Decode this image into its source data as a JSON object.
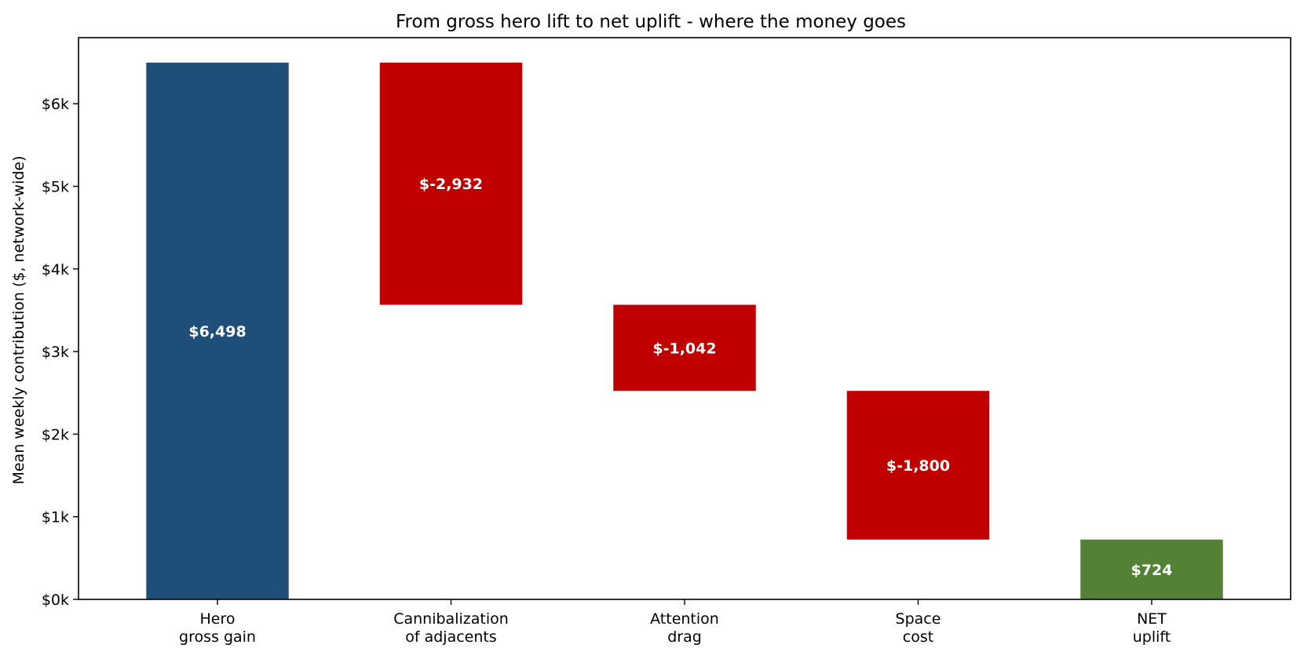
{
  "chart_data": {
    "type": "bar",
    "subtype": "waterfall",
    "title": "From gross hero lift to net uplift  -  where the money goes",
    "xlabel": "",
    "ylabel": "Mean weekly contribution  ($, network-wide)",
    "ylim": [
      0,
      6800
    ],
    "yticks": [
      {
        "value": 0,
        "label": "$0k"
      },
      {
        "value": 1000,
        "label": "$1k"
      },
      {
        "value": 2000,
        "label": "$2k"
      },
      {
        "value": 3000,
        "label": "$3k"
      },
      {
        "value": 4000,
        "label": "$4k"
      },
      {
        "value": 5000,
        "label": "$5k"
      },
      {
        "value": 6000,
        "label": "$6k"
      }
    ],
    "grid": false,
    "legend": "none",
    "steps": [
      {
        "category": [
          "Hero",
          "gross gain"
        ],
        "kind": "total",
        "start": 0,
        "end": 6498,
        "value": 6498,
        "label": "$6,498",
        "color": "#1f4e79"
      },
      {
        "category": [
          "Cannibalization",
          "of adjacents"
        ],
        "kind": "delta",
        "start": 6498,
        "end": 3566,
        "value": -2932,
        "label": "$-2,932",
        "color": "#c00000"
      },
      {
        "category": [
          "Attention",
          "drag"
        ],
        "kind": "delta",
        "start": 3566,
        "end": 2524,
        "value": -1042,
        "label": "$-1,042",
        "color": "#c00000"
      },
      {
        "category": [
          "Space",
          "cost"
        ],
        "kind": "delta",
        "start": 2524,
        "end": 724,
        "value": -1800,
        "label": "$-1,800",
        "color": "#c00000"
      },
      {
        "category": [
          "NET",
          "uplift"
        ],
        "kind": "total",
        "start": 0,
        "end": 724,
        "value": 724,
        "label": "$724",
        "color": "#538135"
      }
    ]
  }
}
